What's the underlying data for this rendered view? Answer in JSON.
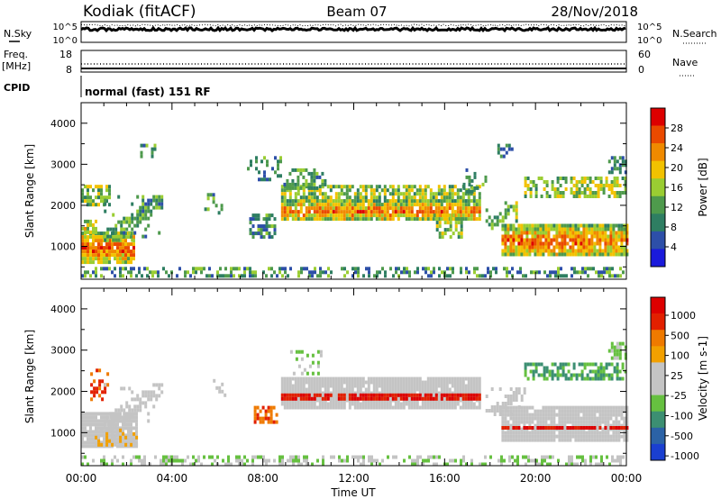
{
  "header": {
    "radar": "Kodiak (fitACF)",
    "beam": "Beam 07",
    "date": "28/Nov/2018"
  },
  "nsky_panel": {
    "left_label": "N.Sky",
    "right_label": "N.Search",
    "left_ticks": [
      "10^5",
      "10^0"
    ],
    "right_ticks": [
      "10^5",
      "10^0"
    ]
  },
  "freq_panel": {
    "left_label": "Freq.",
    "left_unit": "[MHz]",
    "right_label": "Nave",
    "left_ticks": [
      "18",
      "8"
    ],
    "right_ticks": [
      "60",
      "0"
    ]
  },
  "cpid_panel": {
    "label": "CPID",
    "text": "normal (fast) 151 RF"
  },
  "colors": {
    "power_scale": [
      "#1a1adb",
      "#2d4fa8",
      "#2e7e62",
      "#4e9a4c",
      "#9acd32",
      "#f2c200",
      "#f08a00",
      "#ea4a00",
      "#dd0000"
    ],
    "velocity_scale": [
      "#1a3fd0",
      "#2b62a6",
      "#3c8f72",
      "#66c040",
      "#c4c4c4",
      "#c4c4c4",
      "#f2a000",
      "#ef7a00",
      "#e22000",
      "#dd0000"
    ]
  },
  "chart_data": [
    {
      "name": "power",
      "type": "heatmap",
      "xlabel": "",
      "ylabel": "Slant Range [km]",
      "xlim": [
        0,
        24
      ],
      "ylim": [
        200,
        4500
      ],
      "yticks": [
        1000,
        2000,
        3000,
        4000
      ],
      "colorbar": {
        "label": "Power [dB]",
        "range": [
          0,
          32
        ],
        "ticks": [
          "4",
          "8",
          "12",
          "16",
          "20",
          "24",
          "28"
        ]
      },
      "bands": [
        {
          "t": [
            0.0,
            2.3
          ],
          "r": [
            620,
            1360
          ],
          "level": 0.82,
          "tex": "core"
        },
        {
          "t": [
            0.0,
            0.7
          ],
          "r": [
            1350,
            1650
          ],
          "level": 0.58,
          "tex": "edge"
        },
        {
          "t": [
            0.0,
            1.2
          ],
          "r": [
            2050,
            2500
          ],
          "level": 0.45,
          "tex": "patch"
        },
        {
          "t": [
            1.0,
            3.6
          ],
          "r": [
            1150,
            2250
          ],
          "level": 0.35,
          "tex": "diag"
        },
        {
          "t": [
            2.6,
            3.3
          ],
          "r": [
            3200,
            3500
          ],
          "level": 0.3,
          "tex": "sparse"
        },
        {
          "t": [
            5.3,
            6.2
          ],
          "r": [
            1850,
            2300
          ],
          "level": 0.35,
          "tex": "sparse"
        },
        {
          "t": [
            7.4,
            8.5
          ],
          "r": [
            1200,
            1800
          ],
          "level": 0.3,
          "tex": "patch"
        },
        {
          "t": [
            7.3,
            8.8
          ],
          "r": [
            2600,
            3200
          ],
          "level": 0.3,
          "tex": "sparse"
        },
        {
          "t": [
            8.8,
            17.5
          ],
          "r": [
            1650,
            2150
          ],
          "level": 0.78,
          "tex": "core"
        },
        {
          "t": [
            8.8,
            17.5
          ],
          "r": [
            2150,
            2500
          ],
          "level": 0.45,
          "tex": "edge"
        },
        {
          "t": [
            8.9,
            10.8
          ],
          "r": [
            2450,
            2900
          ],
          "level": 0.35,
          "tex": "patch"
        },
        {
          "t": [
            15.5,
            16.8
          ],
          "r": [
            1250,
            1800
          ],
          "level": 0.45,
          "tex": "patch"
        },
        {
          "t": [
            16.8,
            17.8
          ],
          "r": [
            2300,
            2900
          ],
          "level": 0.3,
          "tex": "sparse"
        },
        {
          "t": [
            17.8,
            19.2
          ],
          "r": [
            1450,
            2100
          ],
          "level": 0.45,
          "tex": "diag"
        },
        {
          "t": [
            18.2,
            19.0
          ],
          "r": [
            3200,
            3500
          ],
          "level": 0.3,
          "tex": "sparse"
        },
        {
          "t": [
            18.5,
            24.0
          ],
          "r": [
            780,
            1550
          ],
          "level": 0.8,
          "tex": "core"
        },
        {
          "t": [
            19.5,
            24.0
          ],
          "r": [
            2250,
            2700
          ],
          "level": 0.48,
          "tex": "patch"
        },
        {
          "t": [
            23.2,
            24.0
          ],
          "r": [
            2800,
            3200
          ],
          "level": 0.35,
          "tex": "patch"
        },
        {
          "t": [
            0.0,
            24.0
          ],
          "r": [
            250,
            500
          ],
          "level": 0.3,
          "tex": "ground"
        }
      ]
    },
    {
      "name": "velocity",
      "type": "heatmap",
      "xlabel": "Time UT",
      "ylabel": "Slant Range [km]",
      "xlim": [
        0,
        24
      ],
      "ylim": [
        200,
        4500
      ],
      "yticks": [
        1000,
        2000,
        3000,
        4000
      ],
      "xticks": [
        "00:00",
        "04:00",
        "08:00",
        "12:00",
        "16:00",
        "20:00",
        "00:00"
      ],
      "colorbar": {
        "label": "Velocity [m s-1]",
        "ticks": [
          "1000",
          "500",
          "100",
          "25",
          "-25",
          "-100",
          "-500",
          "-1000"
        ]
      },
      "bands": [
        {
          "t": [
            0.0,
            2.4
          ],
          "r": [
            700,
            1500
          ],
          "level": 0.47,
          "tex": "core"
        },
        {
          "t": [
            0.6,
            2.4
          ],
          "r": [
            750,
            1100
          ],
          "level": 0.62,
          "tex": "patch"
        },
        {
          "t": [
            0.4,
            1.2
          ],
          "r": [
            1850,
            2550
          ],
          "level": 0.8,
          "tex": "sparse"
        },
        {
          "t": [
            1.0,
            3.6
          ],
          "r": [
            1200,
            2200
          ],
          "level": 0.47,
          "tex": "diag"
        },
        {
          "t": [
            5.8,
            6.3
          ],
          "r": [
            1900,
            2300
          ],
          "level": 0.47,
          "tex": "sparse"
        },
        {
          "t": [
            7.6,
            8.6
          ],
          "r": [
            1250,
            1650
          ],
          "level": 0.78,
          "tex": "patch"
        },
        {
          "t": [
            8.8,
            17.5
          ],
          "r": [
            1650,
            2350
          ],
          "level": 0.47,
          "tex": "core"
        },
        {
          "t": [
            8.8,
            17.5
          ],
          "r": [
            1850,
            1950
          ],
          "level": 0.9,
          "tex": "line"
        },
        {
          "t": [
            9.2,
            10.6
          ],
          "r": [
            2450,
            3000
          ],
          "level": 0.38,
          "tex": "sparse"
        },
        {
          "t": [
            17.8,
            19.5
          ],
          "r": [
            1450,
            2100
          ],
          "level": 0.47,
          "tex": "diag"
        },
        {
          "t": [
            18.5,
            24.0
          ],
          "r": [
            800,
            1650
          ],
          "level": 0.47,
          "tex": "core"
        },
        {
          "t": [
            18.5,
            24.0
          ],
          "r": [
            1080,
            1160
          ],
          "level": 0.9,
          "tex": "line"
        },
        {
          "t": [
            19.5,
            24.0
          ],
          "r": [
            2300,
            2700
          ],
          "level": 0.3,
          "tex": "patch"
        },
        {
          "t": [
            23.2,
            24.0
          ],
          "r": [
            2800,
            3200
          ],
          "level": 0.36,
          "tex": "patch"
        },
        {
          "t": [
            0.0,
            24.0
          ],
          "r": [
            250,
            450
          ],
          "level": 0.4,
          "tex": "ground"
        }
      ]
    }
  ]
}
